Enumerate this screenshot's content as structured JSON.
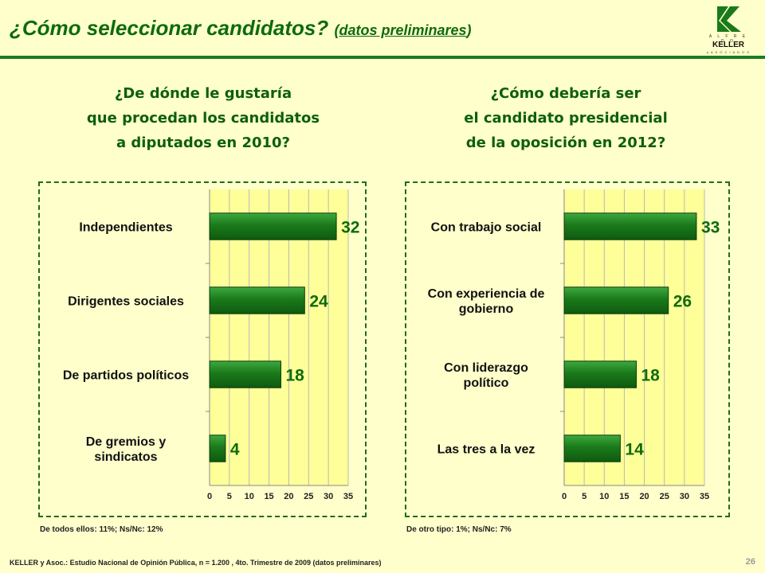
{
  "header": {
    "title": "¿Cómo seleccionar candidatos?",
    "subtitle": "datos preliminares",
    "subtitle_open": "(",
    "subtitle_close": ")"
  },
  "logo": {
    "line1": "A L F R E D O",
    "line2": "KELLER",
    "line3": "y   A S O C I A D O S"
  },
  "left_question": {
    "line1": "¿De dónde le gustaría",
    "line2": "que procedan los candidatos",
    "line3": "a diputados en 2010?"
  },
  "right_question": {
    "line1": "¿Cómo debería ser",
    "line2": "el candidato presidencial",
    "line3": "de la oposición en 2012?"
  },
  "left_note": "De todos ellos: 11%; Ns/Nc: 12%",
  "right_note": "De otro tipo: 1%; Ns/Nc: 7%",
  "footer": "KELLER y Asoc.: Estudio Nacional de Opinión Pública, n = 1.200 , 4to. Trimestre de 2009 (datos preliminares)",
  "page_number": "26",
  "colors": {
    "bar": "#1a7a1a",
    "plot_bg": "#ffff99",
    "text_green": "#0d6b0d",
    "page_bg": "#ffffcc"
  },
  "chart_data": [
    {
      "type": "bar",
      "orientation": "horizontal",
      "categories": [
        [
          "Independientes"
        ],
        [
          "Dirigentes sociales"
        ],
        [
          "De partidos políticos"
        ],
        [
          "De gremios y",
          "sindicatos"
        ]
      ],
      "values": [
        32,
        24,
        18,
        4
      ],
      "xlim": [
        0,
        35
      ],
      "xticks": [
        0,
        5,
        10,
        15,
        20,
        25,
        30,
        35
      ],
      "grid": true
    },
    {
      "type": "bar",
      "orientation": "horizontal",
      "categories": [
        [
          "Con trabajo social"
        ],
        [
          "Con experiencia de",
          "gobierno"
        ],
        [
          "Con liderazgo",
          "político"
        ],
        [
          "Las tres a la vez"
        ]
      ],
      "values": [
        33,
        26,
        18,
        14
      ],
      "xlim": [
        0,
        35
      ],
      "xticks": [
        0,
        5,
        10,
        15,
        20,
        25,
        30,
        35
      ],
      "grid": true
    }
  ]
}
